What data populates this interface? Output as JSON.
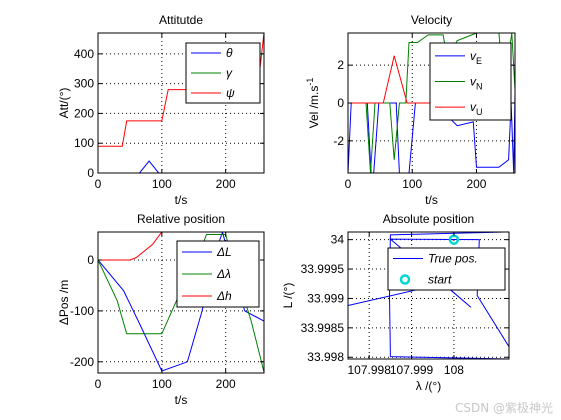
{
  "chart_data": [
    {
      "id": "att",
      "type": "line",
      "title": "Attitutde",
      "xlabel": "t/s",
      "ylabel": "Att/(°)",
      "xlim": [
        0,
        260
      ],
      "ylim": [
        0,
        470
      ],
      "xticks": [
        0,
        100,
        200
      ],
      "yticks": [
        0,
        100,
        200,
        300,
        400
      ],
      "grid": true,
      "legend_position": "top-right",
      "series": [
        {
          "name": "θ",
          "color": "#0000ff",
          "points": [
            [
              0,
              0
            ],
            [
              65,
              0
            ],
            [
              80,
              40
            ],
            [
              95,
              0
            ],
            [
              260,
              0
            ]
          ]
        },
        {
          "name": "γ",
          "color": "#008000",
          "points": [
            [
              0,
              0
            ],
            [
              260,
              0
            ]
          ]
        },
        {
          "name": "ψ",
          "color": "#ff0000",
          "points": [
            [
              0,
              90
            ],
            [
              38,
              90
            ],
            [
              45,
              175
            ],
            [
              100,
              175
            ],
            [
              110,
              280
            ],
            [
              225,
              280
            ],
            [
              232,
              320
            ],
            [
              252,
              320
            ],
            [
              260,
              470
            ]
          ]
        }
      ]
    },
    {
      "id": "vel",
      "type": "line",
      "title": "Velocity",
      "xlabel": "t/s",
      "ylabel": "Vel /m.s-1",
      "xlabel_parts": [],
      "ylabel_main": "Vel /m.s",
      "ylabel_sup": "-1",
      "xlim": [
        0,
        260
      ],
      "ylim": [
        -3.7,
        3.7
      ],
      "xticks": [
        0,
        100,
        200
      ],
      "yticks": [
        -2,
        0,
        2
      ],
      "grid": true,
      "legend_position": "top-right",
      "series": [
        {
          "name": "vE",
          "name_main": "v",
          "name_sub": "E",
          "color": "#0000ff",
          "points": [
            [
              0,
              -3.7
            ],
            [
              5,
              0
            ],
            [
              30,
              0
            ],
            [
              36,
              -3.7
            ],
            [
              40,
              -3.7
            ],
            [
              48,
              0
            ],
            [
              75,
              0
            ],
            [
              80,
              -3.7
            ],
            [
              95,
              -3.7
            ],
            [
              105,
              0
            ],
            [
              135,
              0
            ],
            [
              170,
              -1.2
            ],
            [
              195,
              -1
            ],
            [
              200,
              -3.4
            ],
            [
              235,
              -3.4
            ],
            [
              250,
              -3
            ],
            [
              254,
              0
            ],
            [
              258,
              -3.7
            ],
            [
              260,
              0.5
            ]
          ]
        },
        {
          "name": "vN",
          "name_main": "v",
          "name_sub": "N",
          "color": "#008000",
          "points": [
            [
              0,
              0
            ],
            [
              28,
              0
            ],
            [
              35,
              -3.7
            ],
            [
              42,
              0
            ],
            [
              65,
              0
            ],
            [
              72,
              -3
            ],
            [
              80,
              0
            ],
            [
              90,
              0
            ],
            [
              95,
              3.2
            ],
            [
              108,
              3.2
            ],
            [
              125,
              3.6
            ],
            [
              148,
              3.6
            ],
            [
              155,
              2.3
            ],
            [
              170,
              3.3
            ],
            [
              200,
              3.7
            ],
            [
              235,
              3.7
            ],
            [
              238,
              2.5
            ],
            [
              250,
              2.5
            ],
            [
              255,
              3.7
            ],
            [
              260,
              0.7
            ]
          ]
        },
        {
          "name": "vU",
          "name_main": "v",
          "name_sub": "U",
          "color": "#ff0000",
          "points": [
            [
              0,
              0
            ],
            [
              55,
              0
            ],
            [
              72,
              2.5
            ],
            [
              92,
              0
            ],
            [
              260,
              0
            ]
          ]
        }
      ]
    },
    {
      "id": "relpos",
      "type": "line",
      "title": "Relative position",
      "xlabel": "t/s",
      "ylabel": "ΔPos /m",
      "xlim": [
        0,
        260
      ],
      "ylim": [
        -222,
        55
      ],
      "xticks": [
        0,
        100,
        200
      ],
      "yticks": [
        -200,
        -100,
        0
      ],
      "grid": true,
      "legend_position": "top-right",
      "series": [
        {
          "name": "ΔL",
          "color": "#0000ff",
          "points": [
            [
              0,
              0
            ],
            [
              40,
              -60
            ],
            [
              65,
              -125
            ],
            [
              100,
              -218
            ],
            [
              140,
              -200
            ],
            [
              163,
              -100
            ],
            [
              180,
              0
            ],
            [
              195,
              55
            ],
            [
              215,
              -40
            ],
            [
              230,
              -100
            ],
            [
              245,
              -110
            ],
            [
              260,
              -120
            ]
          ]
        },
        {
          "name": "Δλ",
          "color": "#008000",
          "points": [
            [
              0,
              0
            ],
            [
              30,
              -80
            ],
            [
              45,
              -145
            ],
            [
              100,
              -145
            ],
            [
              130,
              -60
            ],
            [
              155,
              0
            ],
            [
              170,
              50
            ],
            [
              200,
              50
            ],
            [
              215,
              -20
            ],
            [
              240,
              -120
            ],
            [
              260,
              -220
            ]
          ]
        },
        {
          "name": "Δh",
          "color": "#ff0000",
          "points": [
            [
              0,
              0
            ],
            [
              50,
              0
            ],
            [
              60,
              5
            ],
            [
              85,
              30
            ],
            [
              100,
              55
            ],
            [
              260,
              55
            ]
          ]
        }
      ]
    },
    {
      "id": "abspos",
      "type": "line",
      "title": "Absolute position",
      "xlabel": "λ /(°)",
      "ylabel": "L /(°)",
      "xlim": [
        107.9975,
        108.0013
      ],
      "ylim": [
        33.99797,
        34.00013
      ],
      "xticks": [
        107.998,
        107.999,
        108
      ],
      "xtick_labels": [
        "107.998",
        "107.999",
        "108"
      ],
      "yticks": [
        33.998,
        33.9985,
        33.999,
        33.9995,
        34
      ],
      "ytick_labels": [
        "33.998",
        "33.9985",
        "33.999",
        "33.9995",
        "34"
      ],
      "grid": true,
      "legend_position": "top-right",
      "series": [
        {
          "name": "True pos.",
          "color": "#0000ff",
          "points": [
            [
              107.9975,
              33.99888
            ],
            [
              107.99975,
              33.99925
            ],
            [
              108.0004,
              33.99885
            ],
            [
              107.9985,
              34.00001
            ],
            [
              108.0006,
              34
            ],
            [
              108.00055,
              33.99905
            ],
            [
              108.0013,
              33.99818
            ],
            [
              108.0013,
              33.99797
            ],
            [
              107.9985,
              33.99801
            ],
            [
              107.99848,
              33.99905
            ],
            [
              107.9985,
              34.00008
            ],
            [
              108.0012,
              34.00013
            ]
          ]
        },
        {
          "name": "start",
          "color": "#00d8d8",
          "marker": "o",
          "points": [
            [
              108.0,
              34.0
            ]
          ]
        }
      ]
    }
  ],
  "watermark": "CSDN @紫极神光"
}
